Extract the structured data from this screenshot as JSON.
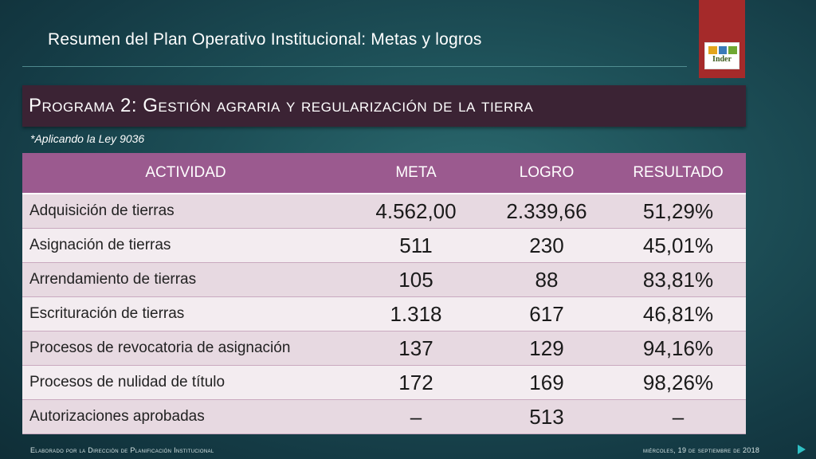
{
  "slide": {
    "title": "Resumen del Plan Operativo Institucional: Metas y logros",
    "logo_text": "Inder",
    "logo_colors": [
      "#e3a51c",
      "#3a7ab8",
      "#6fa832"
    ]
  },
  "program": {
    "title": "Programa 2: Gestión agraria y regularización de la tierra",
    "note": "*Aplicando la Ley 9036"
  },
  "table": {
    "headers": [
      "ACTIVIDAD",
      "META",
      "LOGRO",
      "RESULTADO"
    ],
    "rows": [
      {
        "actividad": "Adquisición de tierras",
        "meta": "4.562,00",
        "logro": "2.339,66",
        "resultado": "51,29%"
      },
      {
        "actividad": "Asignación de tierras",
        "meta": "511",
        "logro": "230",
        "resultado": "45,01%"
      },
      {
        "actividad": "Arrendamiento de tierras",
        "meta": "105",
        "logro": "88",
        "resultado": "83,81%"
      },
      {
        "actividad": "Escrituración de tierras",
        "meta": "1.318",
        "logro": "617",
        "resultado": "46,81%"
      },
      {
        "actividad": "Procesos de revocatoria de asignación",
        "meta": "137",
        "logro": "129",
        "resultado": "94,16%"
      },
      {
        "actividad": "Procesos de nulidad de título",
        "meta": "172",
        "logro": "169",
        "resultado": "98,26%"
      },
      {
        "actividad": "Autorizaciones aprobadas",
        "meta": "–",
        "logro": "513",
        "resultado": "–"
      }
    ]
  },
  "footer": {
    "left": "Elaborado por la Dirección de Planificación Institucional",
    "right": "miércoles, 19 de septiembre de 2018"
  },
  "colors": {
    "header_bg": "#9b5a8f",
    "banner_bg": "#3b2334",
    "logo_tab": "#a52a2a"
  }
}
